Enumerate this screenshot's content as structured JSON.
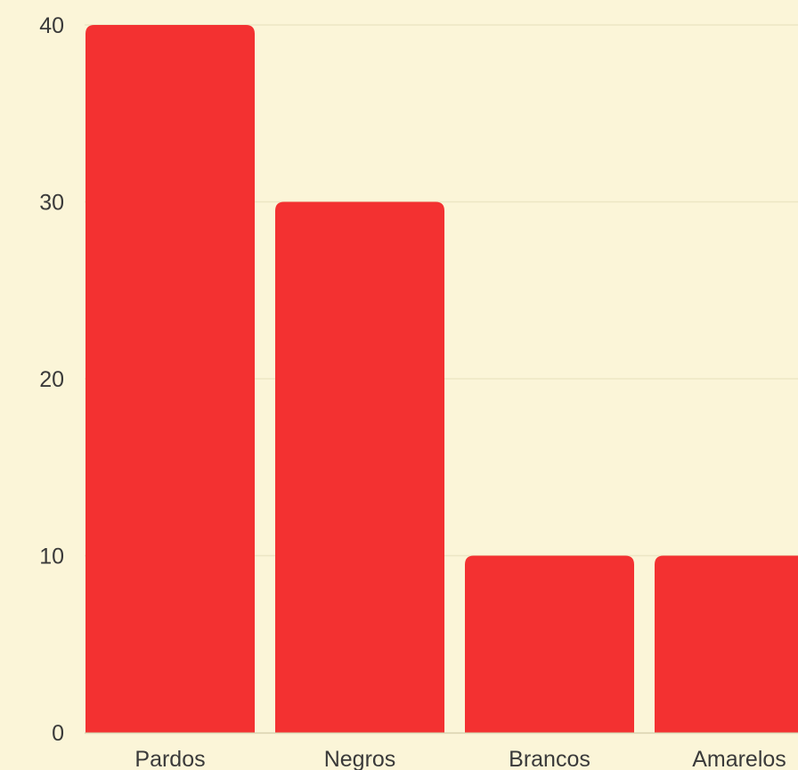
{
  "chart_data": {
    "type": "bar",
    "title": "",
    "xlabel": "",
    "ylabel": "",
    "categories": [
      "Pardos",
      "Negros",
      "Brancos",
      "Amarelos"
    ],
    "values": [
      40,
      30,
      10,
      10
    ],
    "ylim": [
      0,
      40
    ],
    "yticks": [
      "0",
      "10",
      "20",
      "30",
      "40"
    ],
    "grid": true,
    "legend": "none",
    "colors": {
      "bar": "#f33131",
      "background": "#fbf5d8",
      "grid": "#ece6c4",
      "axis": "#d8d0ae",
      "text": "#3a3a3a"
    }
  }
}
